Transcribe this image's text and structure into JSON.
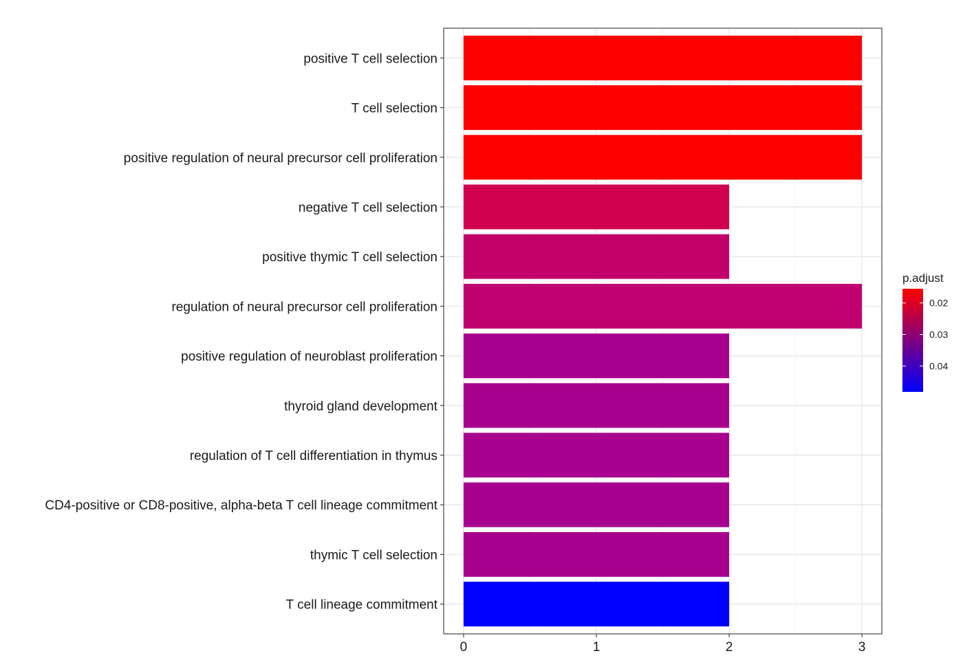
{
  "chart_data": {
    "type": "bar",
    "orientation": "horizontal",
    "categories": [
      "positive T cell selection",
      "T cell selection",
      "positive regulation of neural precursor cell proliferation",
      "negative T cell selection",
      "positive thymic T cell selection",
      "regulation of neural precursor cell proliferation",
      "positive regulation of neuroblast proliferation",
      "thyroid gland development",
      "regulation of T cell differentiation in thymus",
      "CD4-positive or CD8-positive, alpha-beta T cell lineage commitment",
      "thymic T cell selection",
      "T cell lineage commitment"
    ],
    "values": [
      3,
      3,
      3,
      2,
      2,
      3,
      2,
      2,
      2,
      2,
      2,
      2
    ],
    "p_adjust": [
      0.0155,
      0.0155,
      0.0155,
      0.0252,
      0.0278,
      0.0285,
      0.0334,
      0.0334,
      0.0334,
      0.0334,
      0.0334,
      0.0482
    ],
    "bar_colors": [
      "#ff0000",
      "#ff0000",
      "#ff0000",
      "#d0004e",
      "#c3006a",
      "#c0006f",
      "#a8008f",
      "#a8008f",
      "#a8008f",
      "#a8008f",
      "#a8008f",
      "#0000ff"
    ],
    "xlim": [
      -0.15,
      3.15
    ],
    "x_ticks": [
      "0",
      "1",
      "2",
      "3"
    ],
    "x_tick_values": [
      0,
      1,
      2,
      3
    ],
    "grid": true,
    "legend": {
      "title": "p.adjust",
      "placement": "right",
      "range": [
        0.0155,
        0.0482
      ],
      "ticks": [
        "0.02",
        "0.03",
        "0.04"
      ],
      "tick_values": [
        0.02,
        0.03,
        0.04
      ],
      "color_low_value": "#ff0000",
      "color_high_value": "#0000ff"
    }
  }
}
